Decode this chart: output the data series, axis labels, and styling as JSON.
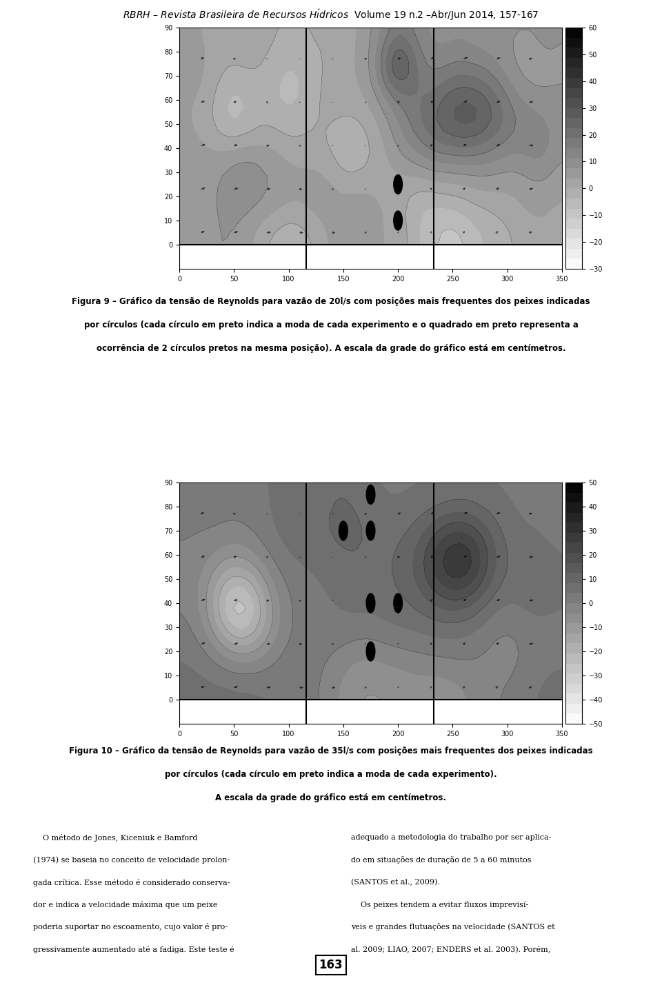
{
  "page_title": "RBRH – Revista Brasileira de Recursos Hídricos",
  "page_subtitle": "Volume 19 n.2 –Abr/Jun 2014, 157-167",
  "fig9_caption_line1": "Figura 9 – Gráfico da tensão de Reynolds para vazão de 20l/s com posições mais frequentes dos peixes indicadas",
  "fig9_caption_line2": "por círculos (cada círculo em preto indica a moda de cada experimento e o quadrado em preto representa a",
  "fig9_caption_line3": "ocorrência de 2 círculos pretos na mesma posição). A escala da grade do gráfico está em centímetros.",
  "fig10_caption_line1": "Figura 10 – Gráfico da tensão de Reynolds para vazão de 35l/s com posições mais frequentes dos peixes indicadas",
  "fig10_caption_line2": "por círculos (cada círculo em preto indica a moda de cada experimento).",
  "fig10_caption_line3": "A escala da grade do gráfico está em centímetros.",
  "xmin": 0,
  "xmax": 350,
  "ymin": -10,
  "ymax": 90,
  "cbar_min9": -30,
  "cbar_max9": 60,
  "cbar_min10": -50,
  "cbar_max10": 50,
  "fig9_circles": [
    [
      200,
      25
    ],
    [
      200,
      10
    ]
  ],
  "fig10_circles": [
    [
      175,
      85
    ],
    [
      150,
      70
    ],
    [
      175,
      70
    ],
    [
      175,
      40
    ],
    [
      200,
      40
    ],
    [
      175,
      20
    ]
  ],
  "text_col1_lines": [
    "    O método de Jones, Kiceniuk e Bamford",
    "(1974) se baseia no conceito de velocidade prolon-",
    "gada crítica. Esse método é considerado conserva-",
    "dor e indica a velocidade máxima que um peixe",
    "poderia suportar no escoamento, cujo valor é pro-",
    "gressivamente aumentado até a fadiga. Este teste é"
  ],
  "text_col2_lines": [
    "adequado a metodologia do trabalho por ser aplica-",
    "do em situações de duração de 5 a 60 minutos",
    "(SANTOS et al., 2009).",
    "    Os peixes tendem a evitar fluxos imprevisí-",
    "veis e grandes flutuações na velocidade (SANTOS et",
    "al. 2009; LIAO, 2007; ENDERS et al. 2003). Porém,"
  ],
  "page_number": "163",
  "background_color": "#ffffff"
}
